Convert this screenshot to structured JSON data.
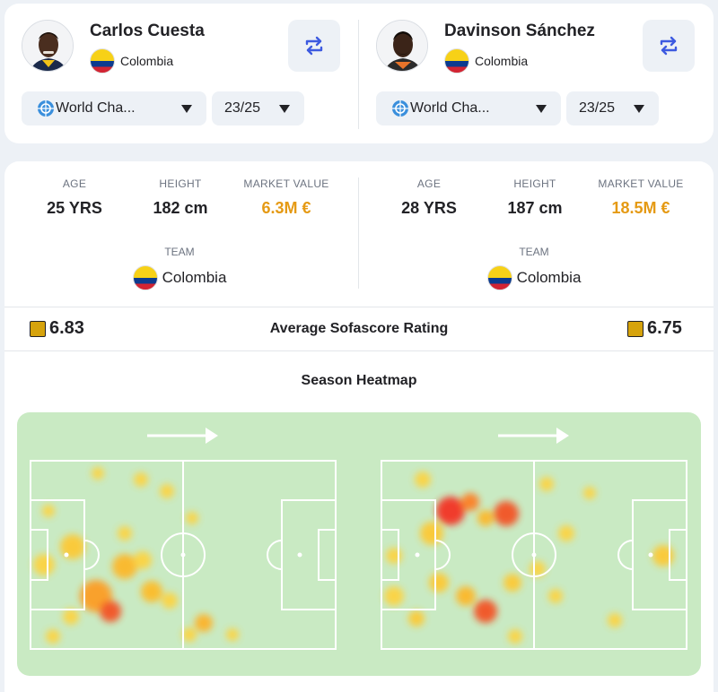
{
  "players": [
    {
      "name": "Carlos Cuesta",
      "country": "Colombia",
      "competition": "World Cha...",
      "season": "23/25",
      "stats": {
        "age": {
          "label": "AGE",
          "value": "25 YRS"
        },
        "height": {
          "label": "HEIGHT",
          "value": "182 cm"
        },
        "market_value": {
          "label": "MARKET VALUE",
          "value": "6.3M €"
        }
      },
      "team": {
        "label": "TEAM",
        "value": "Colombia"
      },
      "rating": "6.83"
    },
    {
      "name": "Davinson Sánchez",
      "country": "Colombia",
      "competition": "World Cha...",
      "season": "23/25",
      "stats": {
        "age": {
          "label": "AGE",
          "value": "28 YRS"
        },
        "height": {
          "label": "HEIGHT",
          "value": "187 cm"
        },
        "market_value": {
          "label": "MARKET VALUE",
          "value": "18.5M €"
        }
      },
      "team": {
        "label": "TEAM",
        "value": "Colombia"
      },
      "rating": "6.75"
    }
  ],
  "rating_title": "Average Sofascore Rating",
  "heatmap_title": "Season Heatmap",
  "colors": {
    "accent": "#3d5ae0",
    "money": "#e59a14",
    "rating_box": "#d6a30c",
    "pitch": "#c9eac3",
    "flag_yellow": "#f7d117",
    "flag_blue": "#0c3b8f",
    "flag_red": "#d22433"
  },
  "icons": {
    "swap": "swap-arrows-icon",
    "competition": "world-championship-icon",
    "dropdown": "caret-down-icon",
    "direction": "attack-direction-arrow-icon"
  }
}
